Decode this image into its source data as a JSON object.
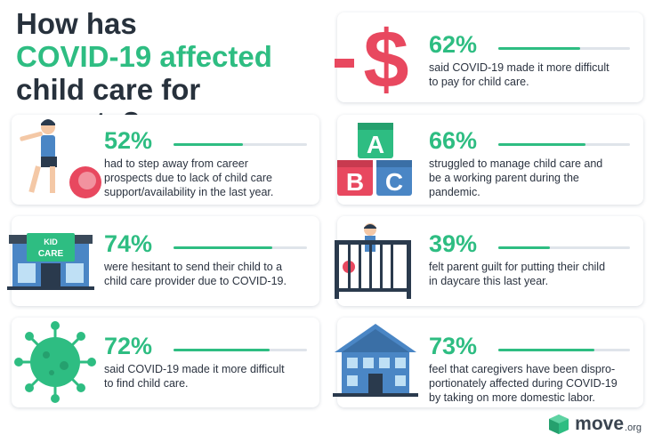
{
  "title": {
    "line1": "How has",
    "line2": "COVID-19 affected",
    "line3": "child care for parents?"
  },
  "stats": [
    {
      "percent": "62%",
      "value": 0.62,
      "text": "said COVID-19 made it more difficult\nto pay for child care.",
      "icon": "dollar-sign-icon"
    },
    {
      "percent": "52%",
      "value": 0.52,
      "text": "had to step away from career\nprospects due to lack of child care\nsupport/availability in the last year.",
      "icon": "child-with-ball-icon"
    },
    {
      "percent": "66%",
      "value": 0.66,
      "text": "struggled to manage child care and\nbe a working parent during the\npandemic.",
      "icon": "abc-blocks-icon"
    },
    {
      "percent": "74%",
      "value": 0.74,
      "text": "were hesitant to send their child to a\nchild care provider due to COVID-19.",
      "icon": "kid-care-building-icon"
    },
    {
      "percent": "39%",
      "value": 0.39,
      "text": "felt parent guilt for putting their child\nin daycare this last year.",
      "icon": "child-in-crib-icon"
    },
    {
      "percent": "72%",
      "value": 0.72,
      "text": "said COVID-19 made it more difficult\nto find child care.",
      "icon": "virus-icon"
    },
    {
      "percent": "73%",
      "value": 0.73,
      "text": "feel that caregivers have been dispro-\nportionately affected during COVID-19\nby taking on more domestic labor.",
      "icon": "house-icon"
    }
  ],
  "icon_labels": {
    "kid_care_sign_1": "KID",
    "kid_care_sign_2": "CARE",
    "block_a": "A",
    "block_b": "B",
    "block_c": "C"
  },
  "brand": {
    "name": "move",
    "suffix": ".org"
  },
  "colors": {
    "accent": "#2ebd82",
    "dark": "#27313c",
    "red": "#e8485f",
    "blue": "#4a86c5"
  }
}
